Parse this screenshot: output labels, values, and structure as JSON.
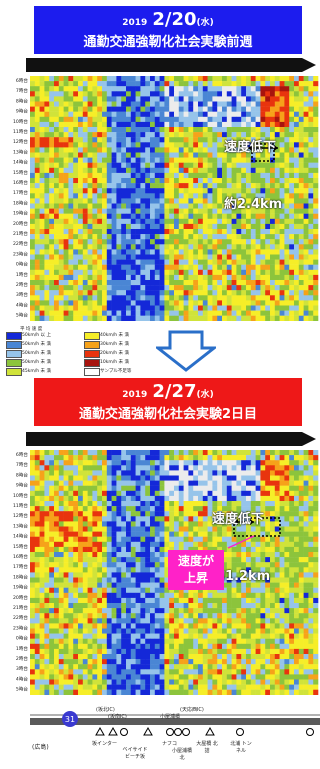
{
  "banner1": {
    "year": "2019",
    "date": "2/20",
    "weekday": "(水)",
    "title": "通勤交通強靭化社会実験前週",
    "color": "#1c1cee"
  },
  "banner2": {
    "year": "2019",
    "date": "2/27",
    "weekday": "(水)",
    "title": "通勤交通強靭化社会実験2日目",
    "color": "#ee1818"
  },
  "callouts": {
    "top_line1": "速度低下",
    "top_line2": "約2.4km",
    "bottom_line1": "速度低下",
    "bottom_line2": "約1.2km",
    "pink": "速度が\n上昇"
  },
  "hour_labels": [
    "6時台",
    "7時台",
    "8時台",
    "9時台",
    "10時台",
    "11時台",
    "12時台",
    "13時台",
    "14時台",
    "15時台",
    "16時台",
    "17時台",
    "18時台",
    "19時台",
    "20時台",
    "21時台",
    "22時台",
    "23時台",
    "0時台",
    "1時台",
    "2時台",
    "3時台",
    "4時台",
    "5時台"
  ],
  "legend": {
    "header": "平 均 速 度",
    "items": [
      {
        "label": "50km/h 以 上",
        "color": "#1428d8"
      },
      {
        "label": "40km/h 未 満",
        "color": "#f6ee28"
      },
      {
        "label": "50km/h 未 満",
        "color": "#4a86d4"
      },
      {
        "label": "30km/h 未 満",
        "color": "#f6a21a"
      },
      {
        "label": "50km/h 未 満",
        "color": "#96c4ea"
      },
      {
        "label": "20km/h 未 満",
        "color": "#e8340e"
      },
      {
        "label": "50km/h 未 満",
        "color": "#8cc43c"
      },
      {
        "label": "10km/h 未 満",
        "color": "#a8140e"
      },
      {
        "label": "45km/h 未 満",
        "color": "#d0e33a"
      },
      {
        "label": "サンプル不足等",
        "color": "#ffffff"
      }
    ]
  },
  "route": {
    "route_number": "31",
    "origin": "(広島)",
    "ic_group1": "(坂北IC)",
    "ic_group2": "(坂南IC)",
    "ic_group3": "(天応西IC)",
    "stations": [
      "坂インター",
      "ベイサイド ビーチ坂",
      "ナフコ",
      "小屋浦橋 北",
      "大屋橋 北詰",
      "北浦 トンネル"
    ],
    "station_top": "小屋浦橋"
  },
  "chart_data": [
    {
      "type": "heatmap",
      "title": "2/20(水) 通勤交通強靭化社会実験前週",
      "rows": [
        "6時台",
        "7時台",
        "8時台",
        "9時台",
        "10時台",
        "11時台",
        "12時台",
        "13時台",
        "14時台",
        "15時台",
        "16時台",
        "17時台",
        "18時台",
        "19時台",
        "20時台",
        "21時台",
        "22時台",
        "23時台",
        "0時台",
        "1時台",
        "2時台",
        "3時台",
        "4時台",
        "5時台"
      ],
      "color_scale": [
        "#1428d8",
        "#4a86d4",
        "#96c4ea",
        "#8cc43c",
        "#d0e33a",
        "#f6ee28",
        "#f6a21a",
        "#e8340e",
        "#a8140e",
        "#ffffff"
      ],
      "annotation": "速度低下 約2.4km"
    },
    {
      "type": "heatmap",
      "title": "2/27(水) 通勤交通強靭化社会実験2日目",
      "rows": [
        "6時台",
        "7時台",
        "8時台",
        "9時台",
        "10時台",
        "11時台",
        "12時台",
        "13時台",
        "14時台",
        "15時台",
        "16時台",
        "17時台",
        "18時台",
        "19時台",
        "20時台",
        "21時台",
        "22時台",
        "23時台",
        "0時台",
        "1時台",
        "2時台",
        "3時台",
        "4時台",
        "5時台"
      ],
      "color_scale": [
        "#1428d8",
        "#4a86d4",
        "#96c4ea",
        "#8cc43c",
        "#d0e33a",
        "#f6ee28",
        "#f6a21a",
        "#e8340e",
        "#a8140e",
        "#ffffff"
      ],
      "annotation": "速度低下 約1.2km"
    }
  ]
}
